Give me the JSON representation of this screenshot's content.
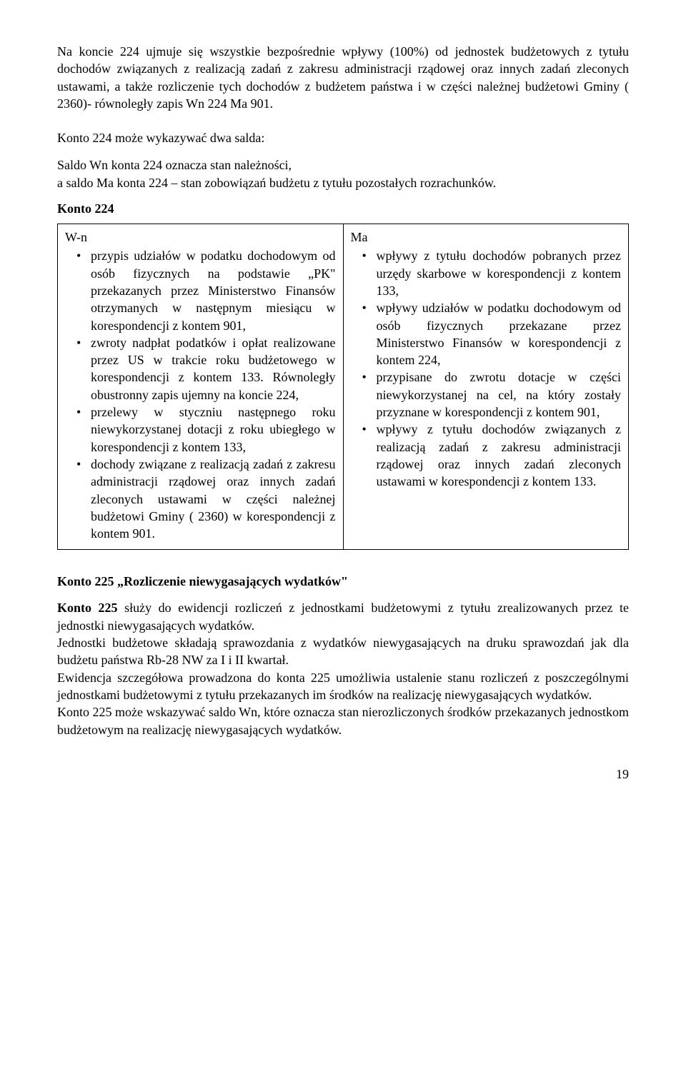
{
  "intro_para": "Na koncie 224 ujmuje się wszystkie bezpośrednie wpływy (100%) od jednostek budżetowych z tytułu dochodów związanych z realizacją zadań z zakresu administracji rządowej oraz innych zadań zleconych ustawami, a także rozliczenie tych dochodów z budżetem państwa i w części należnej budżetowi Gminy ( 2360)- równoległy zapis Wn 224 Ma 901.",
  "salda_intro": "Konto 224 może wykazywać dwa salda:",
  "salda_wn": "Saldo Wn konta 224 oznacza stan należności,",
  "salda_ma": "a saldo Ma konta 224 – stan zobowiązań budżetu z tytułu pozostałych rozrachunków.",
  "konto224_label": "Konto 224",
  "table": {
    "left": {
      "head": "W-n",
      "items": [
        "przypis udziałów w podatku dochodowym od osób fizycznych na podstawie „PK\" przekazanych przez Ministerstwo Finansów otrzymanych w następnym miesiącu w korespondencji z kontem 901,",
        "zwroty nadpłat podatków i opłat realizowane przez US w trakcie roku budżetowego w korespondencji z kontem 133. Równoległy obustronny zapis ujemny na koncie 224,",
        "przelewy w styczniu następnego roku niewykorzystanej dotacji z roku ubiegłego w korespondencji z kontem 133,",
        "dochody związane z realizacją zadań z zakresu administracji rządowej oraz innych zadań zleconych ustawami w części należnej budżetowi Gminy ( 2360) w korespondencji z kontem 901."
      ]
    },
    "right": {
      "head": "Ma",
      "items": [
        "wpływy z tytułu dochodów pobranych przez urzędy skarbowe w korespondencji z kontem 133,",
        "wpływy udziałów w podatku dochodowym od osób fizycznych przekazane przez Ministerstwo Finansów w korespondencji z kontem 224,",
        "przypisane do zwrotu dotacje w części niewykorzystanej na cel, na który zostały przyznane w korespondencji z kontem 901,",
        "wpływy z tytułu dochodów związanych z realizacją zadań z zakresu administracji rządowej oraz innych zadań zleconych ustawami w korespondencji z kontem 133."
      ]
    }
  },
  "konto225_title": "Konto 225 „Rozliczenie niewygasających wydatków\"",
  "konto225_p1a": "Konto 225",
  "konto225_p1b": " służy do ewidencji rozliczeń z jednostkami budżetowymi z tytułu zrealizowanych przez te jednostki niewygasających wydatków.",
  "konto225_p2": "Jednostki budżetowe składają sprawozdania z wydatków niewygasających na druku sprawozdań jak dla budżetu państwa Rb-28 NW za I i II kwartał.",
  "konto225_p3": "Ewidencja szczegółowa prowadzona do konta 225 umożliwia ustalenie stanu rozliczeń z poszczególnymi jednostkami budżetowymi z tytułu przekazanych im środków na realizację niewygasających wydatków.",
  "konto225_p4": "Konto 225 może wskazywać saldo Wn, które oznacza stan nierozliczonych środków przekazanych jednostkom budżetowym na realizację niewygasających wydatków.",
  "page_number": "19"
}
